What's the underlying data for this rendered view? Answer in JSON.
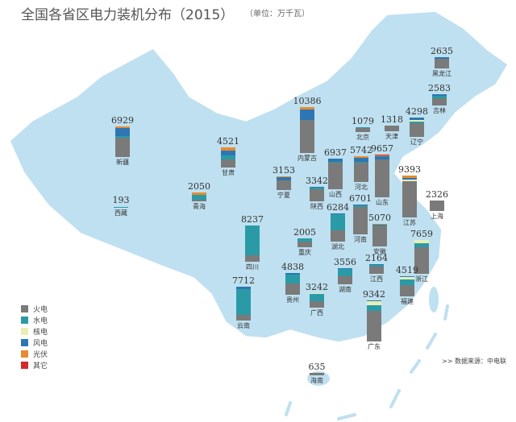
{
  "title": "全国各省区电力装机分布（2015）",
  "unit": "（单位：万千瓦）",
  "source": ">>  数据来源：中电联",
  "chart_data": {
    "type": "bar",
    "subtype": "stacked bars on map",
    "title": "全国各省区电力装机分布（2015）",
    "unit": "万千瓦",
    "legend_position": "bottom-left",
    "series": [
      {
        "name": "火电",
        "color": "#7a7a7a"
      },
      {
        "name": "水电",
        "color": "#2a9ba6"
      },
      {
        "name": "核电",
        "color": "#e9efb4"
      },
      {
        "name": "风电",
        "color": "#2c77b3"
      },
      {
        "name": "光伏",
        "color": "#e88a30"
      },
      {
        "name": "其它",
        "color": "#d22b2b"
      }
    ],
    "provinces": [
      {
        "name": "黑龙江",
        "total": "2635",
        "values": [
          2100,
          100,
          0,
          435,
          0,
          0
        ]
      },
      {
        "name": "吉林",
        "total": "2583",
        "values": [
          1700,
          440,
          0,
          443,
          0,
          0
        ]
      },
      {
        "name": "辽宁",
        "total": "4298",
        "values": [
          3100,
          290,
          450,
          458,
          0,
          0
        ]
      },
      {
        "name": "天津",
        "total": "1318",
        "values": [
          1288,
          0,
          0,
          30,
          0,
          0
        ]
      },
      {
        "name": "北京",
        "total": "1079",
        "values": [
          989,
          90,
          0,
          0,
          0,
          0
        ]
      },
      {
        "name": "内蒙古",
        "total": "10386",
        "values": [
          7396,
          100,
          0,
          2400,
          490,
          0
        ]
      },
      {
        "name": "河北",
        "total": "5742",
        "values": [
          4322,
          180,
          0,
          1000,
          240,
          0
        ]
      },
      {
        "name": "山西",
        "total": "6937",
        "values": [
          5917,
          240,
          0,
          670,
          110,
          0
        ]
      },
      {
        "name": "山东",
        "total": "9657",
        "values": [
          8607,
          0,
          0,
          720,
          130,
          200
        ]
      },
      {
        "name": "江苏",
        "total": "9393",
        "values": [
          8163,
          0,
          400,
          410,
          420,
          0
        ]
      },
      {
        "name": "上海",
        "total": "2326",
        "values": [
          2326,
          0,
          0,
          0,
          0,
          0
        ]
      },
      {
        "name": "新疆",
        "total": "6929",
        "values": [
          4299,
          500,
          0,
          1690,
          440,
          0
        ]
      },
      {
        "name": "甘肃",
        "total": "4521",
        "values": [
          1801,
          860,
          0,
          1250,
          610,
          0
        ]
      },
      {
        "name": "宁夏",
        "total": "3153",
        "values": [
          2103,
          0,
          0,
          820,
          230,
          0
        ]
      },
      {
        "name": "陕西",
        "total": "3342",
        "values": [
          2782,
          290,
          0,
          170,
          100,
          0
        ]
      },
      {
        "name": "青海",
        "total": "2050",
        "values": [
          350,
          1140,
          0,
          50,
          510,
          0
        ]
      },
      {
        "name": "西藏",
        "total": "193",
        "values": [
          3,
          150,
          0,
          0,
          40,
          0
        ]
      },
      {
        "name": "河南",
        "total": "6701",
        "values": [
          6211,
          400,
          0,
          90,
          0,
          0
        ]
      },
      {
        "name": "安徽",
        "total": "5070",
        "values": [
          4530,
          280,
          0,
          140,
          120,
          0
        ]
      },
      {
        "name": "湖北",
        "total": "6284",
        "values": [
          2604,
          3600,
          0,
          80,
          0,
          0
        ]
      },
      {
        "name": "四川",
        "total": "8237",
        "values": [
          1507,
          6700,
          0,
          30,
          0,
          0
        ]
      },
      {
        "name": "重庆",
        "total": "2005",
        "values": [
          1305,
          700,
          0,
          0,
          0,
          0
        ]
      },
      {
        "name": "浙江",
        "total": "7659",
        "values": [
          5959,
          1000,
          600,
          100,
          0,
          0
        ]
      },
      {
        "name": "江西",
        "total": "2164",
        "values": [
          1604,
          480,
          0,
          80,
          0,
          0
        ]
      },
      {
        "name": "湖南",
        "total": "3556",
        "values": [
          1896,
          1500,
          0,
          160,
          0,
          0
        ]
      },
      {
        "name": "贵州",
        "total": "4838",
        "values": [
          2518,
          2000,
          0,
          320,
          0,
          0
        ]
      },
      {
        "name": "福建",
        "total": "4519",
        "values": [
          2499,
          1300,
          550,
          170,
          0,
          0
        ]
      },
      {
        "name": "云南",
        "total": "7712",
        "values": [
          1302,
          5800,
          0,
          610,
          0,
          0
        ]
      },
      {
        "name": "广西",
        "total": "3242",
        "values": [
          1542,
          1600,
          100,
          0,
          0,
          0
        ]
      },
      {
        "name": "广东",
        "total": "9342",
        "values": [
          6862,
          1350,
          830,
          240,
          60,
          0
        ]
      },
      {
        "name": "海南",
        "total": "635",
        "values": [
          505,
          0,
          130,
          0,
          0,
          0
        ]
      }
    ]
  }
}
